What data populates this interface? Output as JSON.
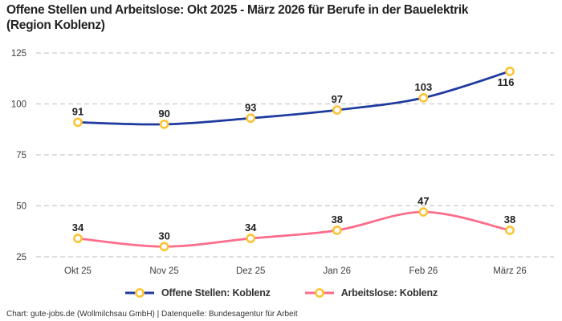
{
  "header": {
    "title_line1": "Offene Stellen und Arbeitslose: Okt 2025 - März 2026 für Berufe in der Bauelektrik",
    "title_line2": "(Region Koblenz)"
  },
  "legend": {
    "items": [
      {
        "label": "Offene Stellen: Koblenz",
        "color": "#1e3a9f"
      },
      {
        "label": "Arbeitslose: Koblenz",
        "color": "#fb6d8b"
      }
    ]
  },
  "footer": {
    "credit": "Chart: gute-jobs.de (Wollmilchsau GmbH) | Datenquelle: Bundesagentur für Arbeit"
  },
  "colors": {
    "grid": "#c9c9c9",
    "tick_text": "#404040",
    "data_label": "#1f1f1f",
    "marker_fill": "#ffffff",
    "marker_stroke": "#fdc230"
  },
  "chart_data": {
    "type": "line",
    "title": "Offene Stellen und Arbeitslose: Okt 2025 - März 2026 für Berufe in der Bauelektrik (Region Koblenz)",
    "categories": [
      "Okt 25",
      "Nov 25",
      "Dez 25",
      "Jan 26",
      "Feb 26",
      "März 26"
    ],
    "series": [
      {
        "name": "Offene Stellen: Koblenz",
        "color": "#1e3a9f",
        "values": [
          91,
          90,
          93,
          97,
          103,
          116
        ]
      },
      {
        "name": "Arbeitslose: Koblenz",
        "color": "#fb6d8b",
        "values": [
          34,
          30,
          34,
          38,
          47,
          38
        ]
      }
    ],
    "yticks": [
      25,
      50,
      75,
      100,
      125
    ],
    "ylim": [
      25,
      125
    ],
    "xlabel": "",
    "ylabel": "",
    "grid": "horizontal-dashed",
    "legend_position": "bottom",
    "marker": "open-circle"
  }
}
